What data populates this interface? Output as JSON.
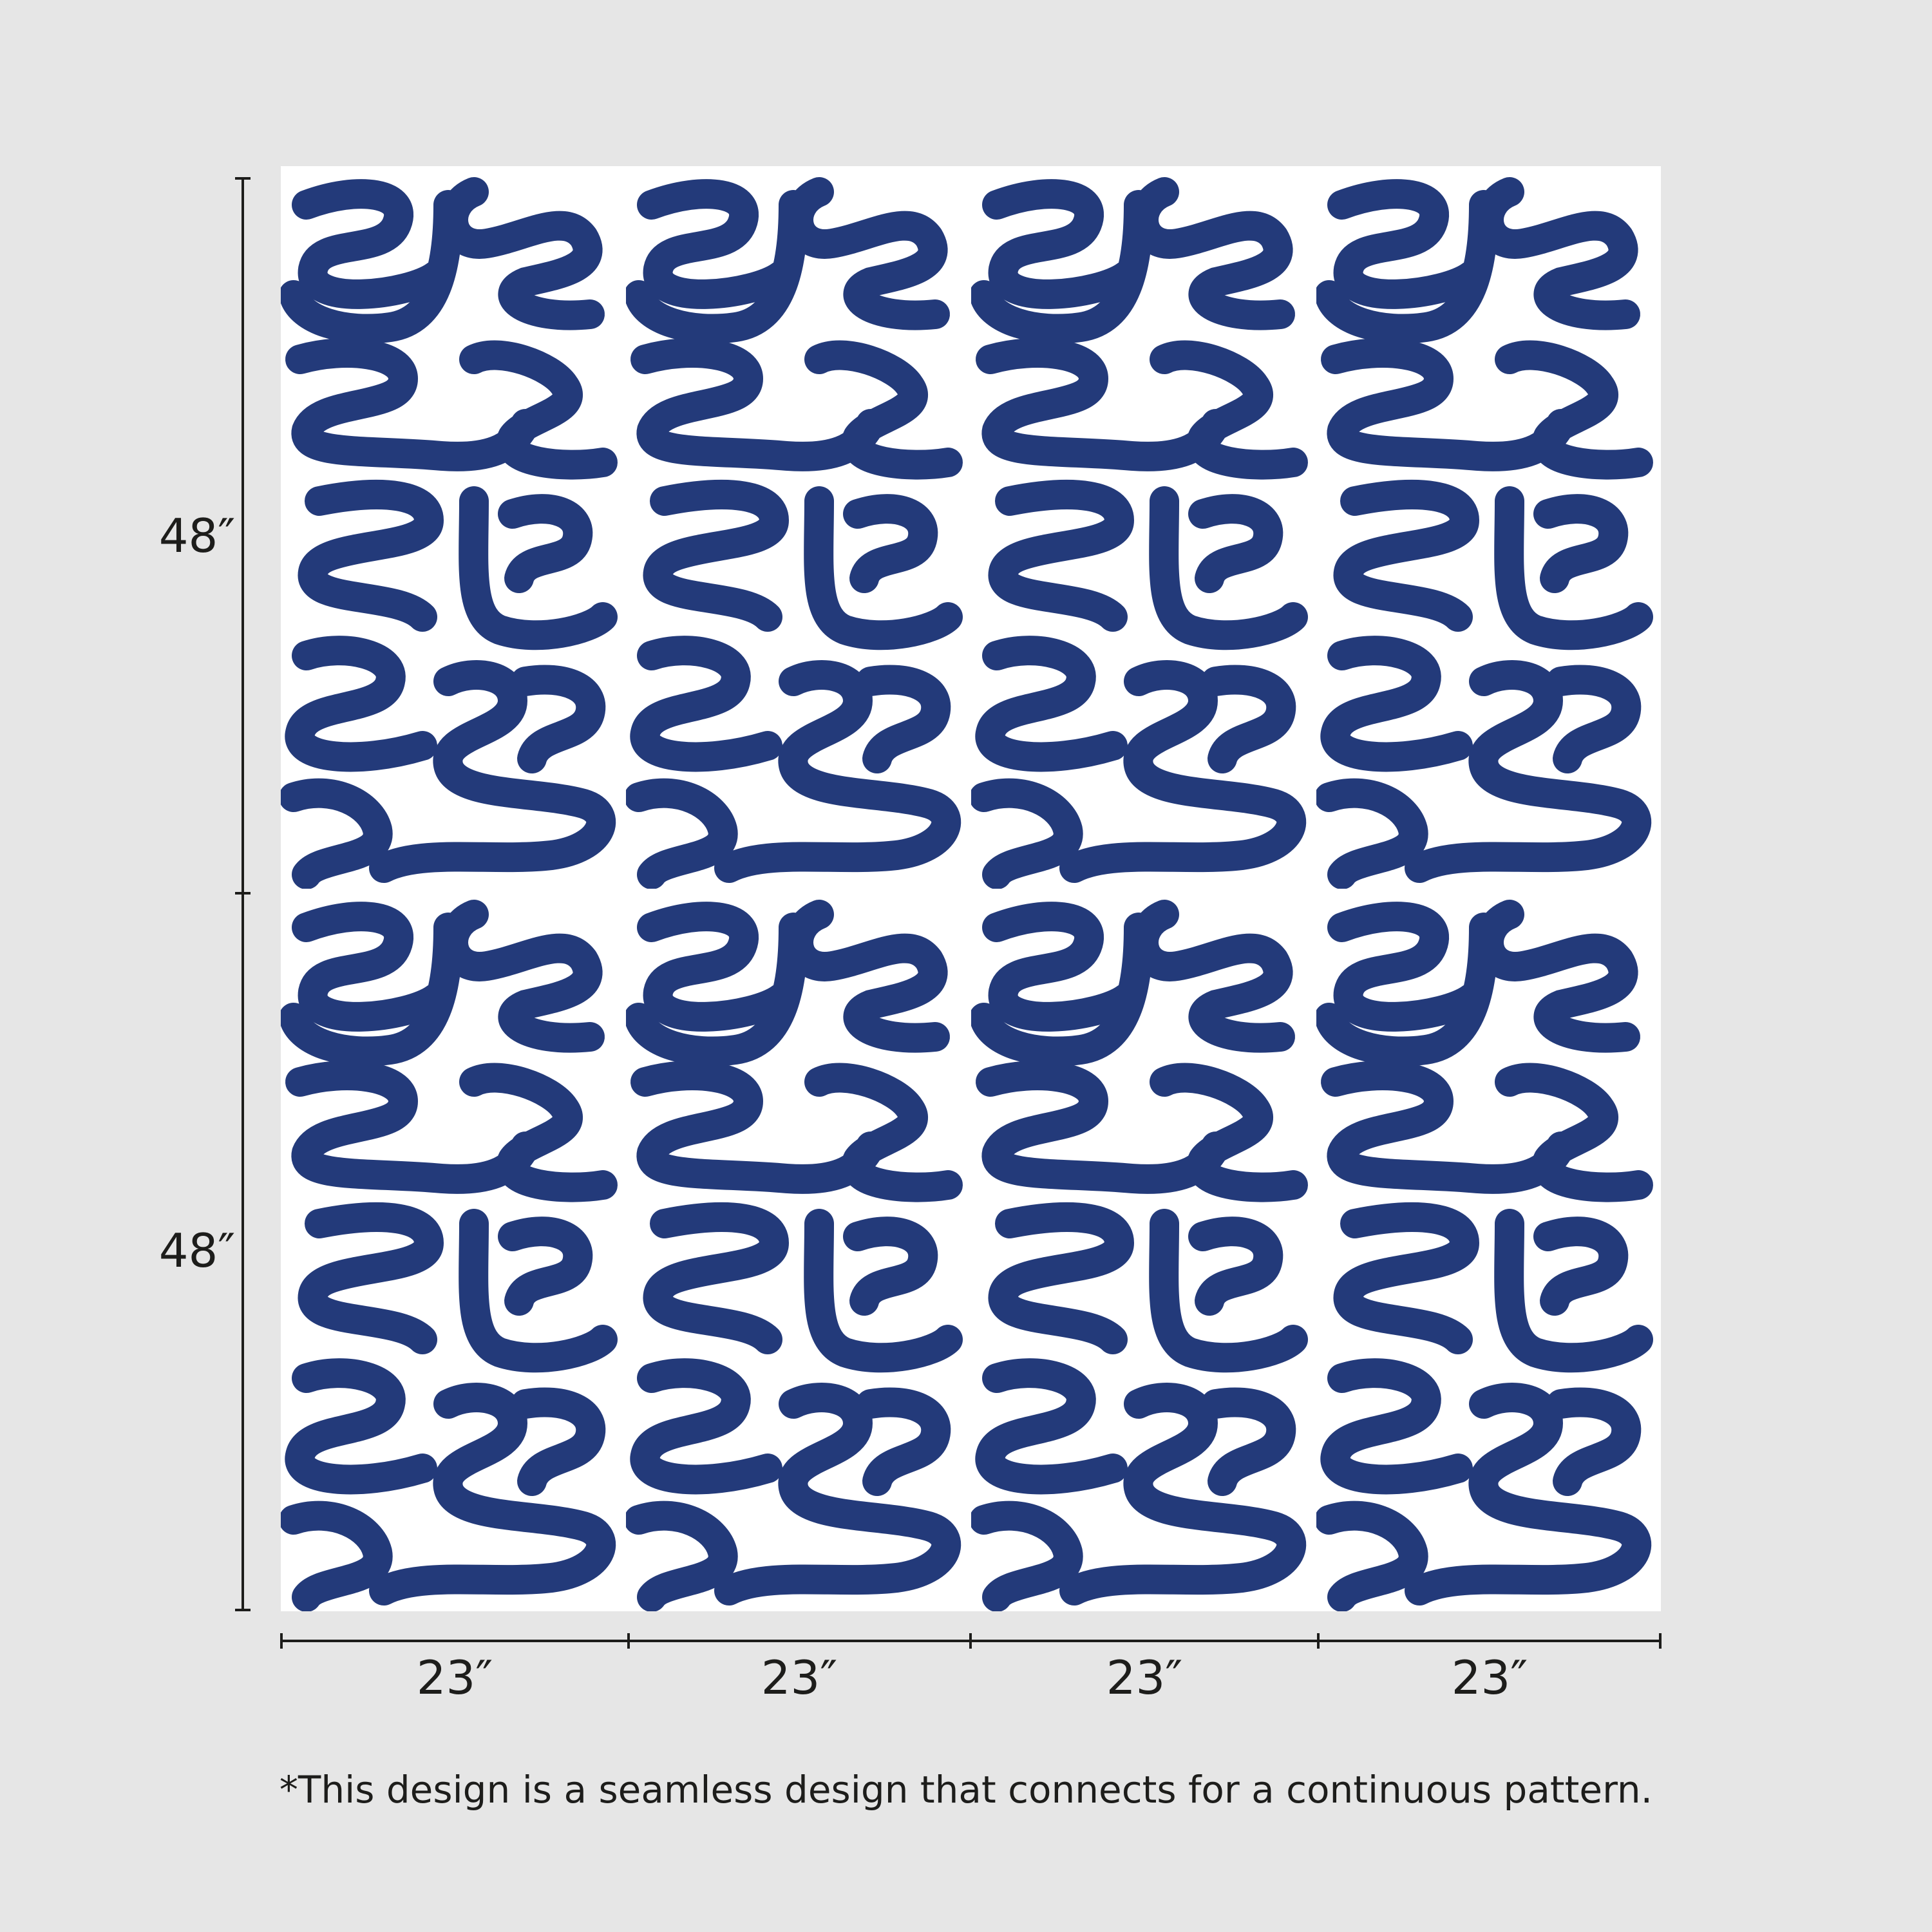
{
  "colors": {
    "background": "#e6e6e6",
    "pattern_ink": "#233a7a",
    "pattern_ground": "#ffffff",
    "ruler": "#1d1d1b"
  },
  "pattern": {
    "description_label": "",
    "columns": 4,
    "rows": 2
  },
  "dimensions": {
    "height_labels": [
      "48″",
      "48″"
    ],
    "width_labels": [
      "23″",
      "23″",
      "23″",
      "23″"
    ]
  },
  "footnote": "*This design is a seamless design that connects for a continuous pattern."
}
